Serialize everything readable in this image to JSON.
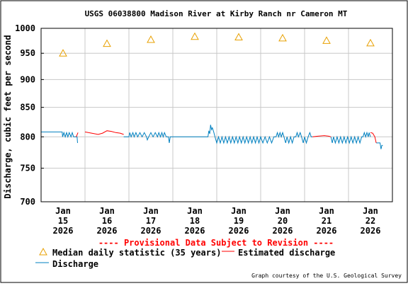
{
  "chart_data": {
    "type": "line",
    "title": "USGS 06038800 Madison River at Kirby Ranch nr Cameron MT",
    "ylabel": "Discharge, cubic feet per second",
    "ylim": [
      700,
      1000
    ],
    "y_scale": "log",
    "yticks": [
      700,
      750,
      800,
      850,
      900,
      950,
      1000
    ],
    "grid": true,
    "x_range_days": [
      0,
      8.0
    ],
    "x_tick_labels": [
      {
        "day": 0.5,
        "lines": [
          "Jan",
          "15",
          "2026"
        ]
      },
      {
        "day": 1.5,
        "lines": [
          "Jan",
          "16",
          "2026"
        ]
      },
      {
        "day": 2.5,
        "lines": [
          "Jan",
          "17",
          "2026"
        ]
      },
      {
        "day": 3.5,
        "lines": [
          "Jan",
          "18",
          "2026"
        ]
      },
      {
        "day": 4.5,
        "lines": [
          "Jan",
          "19",
          "2026"
        ]
      },
      {
        "day": 5.5,
        "lines": [
          "Jan",
          "20",
          "2026"
        ]
      },
      {
        "day": 6.5,
        "lines": [
          "Jan",
          "21",
          "2026"
        ]
      },
      {
        "day": 7.5,
        "lines": [
          "Jan",
          "22",
          "2026"
        ]
      }
    ],
    "annotation": "---- Provisional Data Subject to Revision ----",
    "legend": [
      {
        "key": "median",
        "label": "Median daily statistic (35 years)"
      },
      {
        "key": "estimated",
        "label": "Estimated discharge"
      },
      {
        "key": "discharge",
        "label": "Discharge"
      }
    ],
    "credit": "Graph courtesy of the U.S. Geological Survey",
    "colors": {
      "median": "#e8a000",
      "estimated": "#ff0000",
      "discharge": "#0080c0",
      "grid": "#c8c8c8"
    },
    "series": [
      {
        "key": "median",
        "style": "triangle",
        "points": [
          [
            0.5,
            950
          ],
          [
            1.5,
            969
          ],
          [
            2.5,
            977
          ],
          [
            3.5,
            983
          ],
          [
            4.5,
            982
          ],
          [
            5.5,
            980
          ],
          [
            6.5,
            975
          ],
          [
            7.5,
            970
          ]
        ]
      },
      {
        "key": "discharge",
        "style": "line",
        "segments": [
          [
            [
              0.0,
              808
            ],
            [
              0.48,
              808
            ],
            [
              0.49,
              800
            ],
            [
              0.52,
              807
            ],
            [
              0.55,
              800
            ],
            [
              0.58,
              807
            ],
            [
              0.61,
              800
            ],
            [
              0.64,
              807
            ],
            [
              0.68,
              800
            ],
            [
              0.71,
              807
            ],
            [
              0.74,
              800
            ],
            [
              0.82,
              800
            ],
            [
              0.83,
              790
            ]
          ],
          [
            [
              1.88,
              800
            ],
            [
              2.0,
              800
            ],
            [
              2.02,
              807
            ],
            [
              2.05,
              800
            ],
            [
              2.09,
              807
            ],
            [
              2.12,
              800
            ],
            [
              2.16,
              807
            ],
            [
              2.2,
              800
            ],
            [
              2.25,
              807
            ],
            [
              2.3,
              800
            ],
            [
              2.35,
              807
            ],
            [
              2.4,
              800
            ],
            [
              2.42,
              795
            ],
            [
              2.45,
              800
            ],
            [
              2.5,
              807
            ],
            [
              2.55,
              800
            ],
            [
              2.6,
              807
            ],
            [
              2.65,
              800
            ],
            [
              2.68,
              807
            ],
            [
              2.72,
              800
            ],
            [
              2.75,
              807
            ],
            [
              2.78,
              800
            ],
            [
              2.81,
              807
            ],
            [
              2.85,
              800
            ],
            [
              2.9,
              800
            ],
            [
              2.92,
              790
            ],
            [
              2.94,
              800
            ],
            [
              3.8,
              800
            ],
            [
              3.82,
              810
            ],
            [
              3.84,
              805
            ],
            [
              3.86,
              820
            ],
            [
              3.88,
              812
            ],
            [
              3.9,
              815
            ],
            [
              3.93,
              808
            ],
            [
              3.96,
              800
            ],
            [
              4.0,
              790
            ],
            [
              4.04,
              800
            ],
            [
              4.08,
              790
            ],
            [
              4.12,
              800
            ],
            [
              4.16,
              790
            ],
            [
              4.2,
              800
            ],
            [
              4.24,
              790
            ],
            [
              4.28,
              800
            ],
            [
              4.32,
              790
            ],
            [
              4.36,
              800
            ],
            [
              4.4,
              790
            ],
            [
              4.44,
              800
            ],
            [
              4.48,
              790
            ],
            [
              4.52,
              800
            ],
            [
              4.56,
              790
            ],
            [
              4.6,
              800
            ],
            [
              4.64,
              790
            ],
            [
              4.68,
              800
            ],
            [
              4.72,
              790
            ],
            [
              4.76,
              800
            ],
            [
              4.8,
              790
            ],
            [
              4.84,
              800
            ],
            [
              4.88,
              790
            ],
            [
              4.92,
              800
            ],
            [
              4.96,
              790
            ],
            [
              5.0,
              800
            ],
            [
              5.05,
              790
            ],
            [
              5.1,
              800
            ],
            [
              5.15,
              790
            ],
            [
              5.2,
              800
            ],
            [
              5.25,
              790
            ],
            [
              5.3,
              800
            ],
            [
              5.35,
              800
            ],
            [
              5.38,
              807
            ],
            [
              5.41,
              800
            ],
            [
              5.44,
              807
            ],
            [
              5.47,
              800
            ],
            [
              5.5,
              807
            ],
            [
              5.53,
              800
            ],
            [
              5.57,
              790
            ],
            [
              5.6,
              800
            ],
            [
              5.64,
              790
            ],
            [
              5.68,
              800
            ],
            [
              5.72,
              790
            ],
            [
              5.76,
              800
            ],
            [
              5.8,
              800
            ],
            [
              5.83,
              807
            ],
            [
              5.86,
              800
            ],
            [
              5.9,
              807
            ],
            [
              5.93,
              800
            ],
            [
              5.97,
              790
            ],
            [
              6.0,
              800
            ],
            [
              6.04,
              790
            ],
            [
              6.08,
              800
            ],
            [
              6.12,
              807
            ],
            [
              6.15,
              800
            ],
            [
              6.18,
              800
            ]
          ],
          [
            [
              6.6,
              800
            ],
            [
              6.63,
              790
            ],
            [
              6.66,
              800
            ],
            [
              6.7,
              790
            ],
            [
              6.74,
              800
            ],
            [
              6.78,
              790
            ],
            [
              6.82,
              800
            ],
            [
              6.86,
              790
            ],
            [
              6.9,
              800
            ],
            [
              6.94,
              790
            ],
            [
              6.98,
              800
            ],
            [
              7.02,
              790
            ],
            [
              7.06,
              800
            ],
            [
              7.1,
              790
            ],
            [
              7.14,
              800
            ],
            [
              7.18,
              790
            ],
            [
              7.22,
              800
            ],
            [
              7.26,
              790
            ],
            [
              7.3,
              800
            ],
            [
              7.33,
              800
            ],
            [
              7.36,
              807
            ],
            [
              7.39,
              800
            ],
            [
              7.42,
              807
            ],
            [
              7.45,
              800
            ],
            [
              7.47,
              807
            ],
            [
              7.5,
              800
            ]
          ],
          [
            [
              7.63,
              790
            ],
            [
              7.72,
              790
            ],
            [
              7.74,
              780
            ],
            [
              7.76,
              786
            ],
            [
              7.78,
              786
            ]
          ]
        ]
      },
      {
        "key": "estimated",
        "style": "line",
        "segments": [
          [
            [
              0.8,
              800
            ],
            [
              0.84,
              807
            ]
          ],
          [
            [
              1.0,
              808
            ],
            [
              1.15,
              806
            ],
            [
              1.3,
              804
            ],
            [
              1.4,
              806
            ],
            [
              1.5,
              810
            ],
            [
              1.6,
              809
            ],
            [
              1.7,
              807
            ],
            [
              1.8,
              806
            ],
            [
              1.88,
              804
            ]
          ],
          [
            [
              6.18,
              800
            ],
            [
              6.3,
              801
            ],
            [
              6.45,
              802
            ],
            [
              6.55,
              801
            ],
            [
              6.6,
              800
            ]
          ],
          [
            [
              7.5,
              807
            ],
            [
              7.55,
              806
            ],
            [
              7.6,
              800
            ],
            [
              7.63,
              790
            ]
          ]
        ]
      }
    ]
  }
}
